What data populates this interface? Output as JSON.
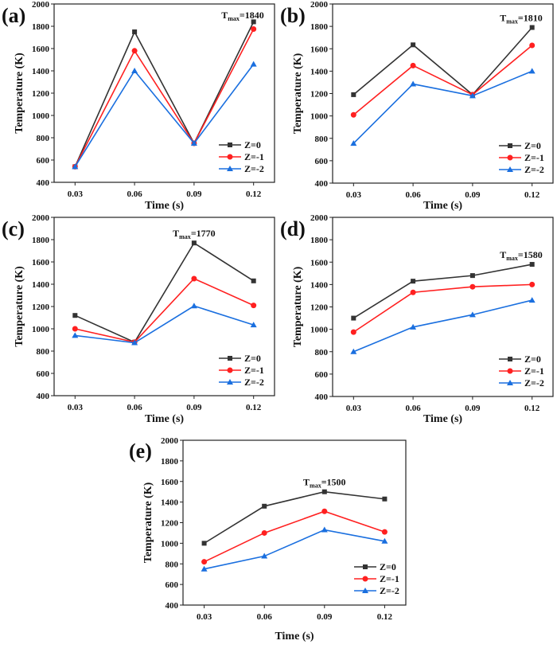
{
  "chart_data": [
    {
      "type": "line",
      "panel_label": "(a)",
      "annotation_prefix": "T",
      "annotation_sub": "max",
      "annotation_value": "=1840",
      "xlabel": "Time (s)",
      "ylabel": "Temperature (K)",
      "ylim": [
        400,
        2000
      ],
      "yticks": [
        400,
        600,
        800,
        1000,
        1200,
        1400,
        1600,
        1800,
        2000
      ],
      "categories": [
        "0.03",
        "0.06",
        "0.09",
        "0.12"
      ],
      "series": [
        {
          "name": "Z=0",
          "color": "#333333",
          "marker": "square",
          "values": [
            540,
            1750,
            750,
            1840
          ]
        },
        {
          "name": "Z=-1",
          "color": "#ff2020",
          "marker": "circle",
          "values": [
            540,
            1580,
            750,
            1775
          ]
        },
        {
          "name": "Z=-2",
          "color": "#1a6fdf",
          "marker": "triangle",
          "values": [
            540,
            1400,
            750,
            1460
          ]
        }
      ]
    },
    {
      "type": "line",
      "panel_label": "(b)",
      "annotation_prefix": "T",
      "annotation_sub": "max",
      "annotation_value": "=1810",
      "xlabel": "Time (s)",
      "ylabel": "Temperature (K)",
      "ylim": [
        400,
        2000
      ],
      "yticks": [
        400,
        600,
        800,
        1000,
        1200,
        1400,
        1600,
        1800,
        2000
      ],
      "categories": [
        "0.03",
        "0.06",
        "0.09",
        "0.12"
      ],
      "series": [
        {
          "name": "Z=0",
          "color": "#333333",
          "marker": "square",
          "values": [
            1190,
            1635,
            1190,
            1790
          ]
        },
        {
          "name": "Z=-1",
          "color": "#ff2020",
          "marker": "circle",
          "values": [
            1010,
            1450,
            1190,
            1630
          ]
        },
        {
          "name": "Z=-2",
          "color": "#1a6fdf",
          "marker": "triangle",
          "values": [
            755,
            1285,
            1180,
            1400
          ]
        }
      ]
    },
    {
      "type": "line",
      "panel_label": "(c)",
      "annotation_prefix": "T",
      "annotation_sub": "max",
      "annotation_value": "=1770",
      "xlabel": "Time (s)",
      "ylabel": "Temperature (K)",
      "ylim": [
        400,
        2000
      ],
      "yticks": [
        400,
        600,
        800,
        1000,
        1200,
        1400,
        1600,
        1800,
        2000
      ],
      "categories": [
        "0.03",
        "0.06",
        "0.09",
        "0.12"
      ],
      "series": [
        {
          "name": "Z=0",
          "color": "#333333",
          "marker": "square",
          "values": [
            1120,
            880,
            1770,
            1430
          ]
        },
        {
          "name": "Z=-1",
          "color": "#ff2020",
          "marker": "circle",
          "values": [
            1000,
            880,
            1450,
            1210
          ]
        },
        {
          "name": "Z=-2",
          "color": "#1a6fdf",
          "marker": "triangle",
          "values": [
            940,
            875,
            1205,
            1035
          ]
        }
      ]
    },
    {
      "type": "line",
      "panel_label": "(d)",
      "annotation_prefix": "T",
      "annotation_sub": "max",
      "annotation_value": "=1580",
      "xlabel": "Time (s)",
      "ylabel": "Temperature (K)",
      "ylim": [
        400,
        2000
      ],
      "yticks": [
        400,
        600,
        800,
        1000,
        1200,
        1400,
        1600,
        1800,
        2000
      ],
      "categories": [
        "0.03",
        "0.06",
        "0.09",
        "0.12"
      ],
      "series": [
        {
          "name": "Z=0",
          "color": "#333333",
          "marker": "square",
          "values": [
            1100,
            1430,
            1480,
            1580
          ]
        },
        {
          "name": "Z=-1",
          "color": "#ff2020",
          "marker": "circle",
          "values": [
            975,
            1330,
            1380,
            1400
          ]
        },
        {
          "name": "Z=-2",
          "color": "#1a6fdf",
          "marker": "triangle",
          "values": [
            800,
            1020,
            1130,
            1260
          ]
        }
      ]
    },
    {
      "type": "line",
      "panel_label": "(e)",
      "annotation_prefix": "T",
      "annotation_sub": "max",
      "annotation_value": "=1500",
      "xlabel": "Time (s)",
      "ylabel": "Temperature (K)",
      "ylim": [
        400,
        2000
      ],
      "yticks": [
        400,
        600,
        800,
        1000,
        1200,
        1400,
        1600,
        1800,
        2000
      ],
      "categories": [
        "0.03",
        "0.06",
        "0.09",
        "0.12"
      ],
      "series": [
        {
          "name": "Z=0",
          "color": "#333333",
          "marker": "square",
          "values": [
            1000,
            1360,
            1500,
            1430
          ]
        },
        {
          "name": "Z=-1",
          "color": "#ff2020",
          "marker": "circle",
          "values": [
            820,
            1100,
            1310,
            1110
          ]
        },
        {
          "name": "Z=-2",
          "color": "#1a6fdf",
          "marker": "triangle",
          "values": [
            750,
            875,
            1130,
            1020
          ]
        }
      ]
    }
  ]
}
